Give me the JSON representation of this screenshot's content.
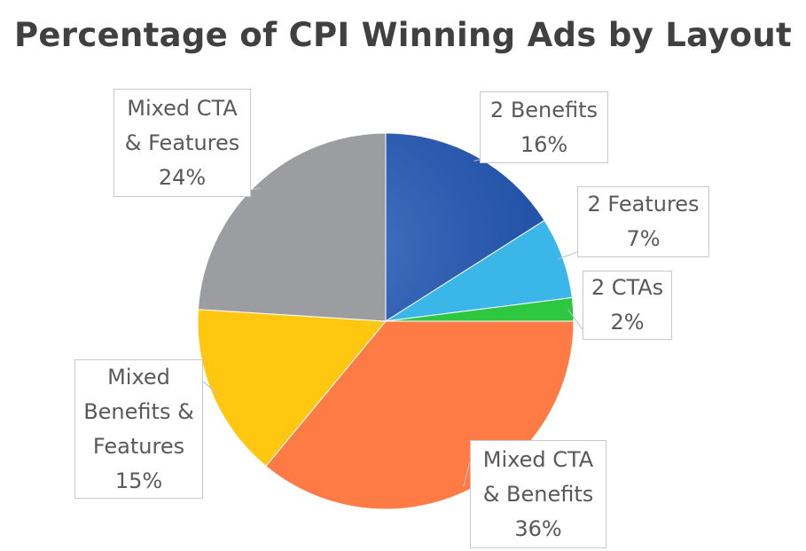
{
  "chart_data": {
    "type": "pie",
    "title": "Percentage of CPI Winning Ads by Layout",
    "start_angle": "12 o'clock",
    "direction": "clockwise",
    "slices": [
      {
        "label": "2 Benefits",
        "value": 16,
        "value_label": "16%",
        "color": "#1f55b5"
      },
      {
        "label": "2 Features",
        "value": 7,
        "value_label": "7%",
        "color": "#3ab6e8"
      },
      {
        "label": "2 CTAs",
        "value": 2,
        "value_label": "2%",
        "color": "#2ec840"
      },
      {
        "label": "Mixed CTA & Benefits",
        "value": 36,
        "value_label": "36%",
        "color": "#ff7b45"
      },
      {
        "label": "Mixed Benefits & Features",
        "value": 15,
        "value_label": "15%",
        "color": "#ffc710"
      },
      {
        "label": "Mixed CTA & Features",
        "value": 24,
        "value_label": "24%",
        "color": "#9b9da1"
      }
    ]
  }
}
